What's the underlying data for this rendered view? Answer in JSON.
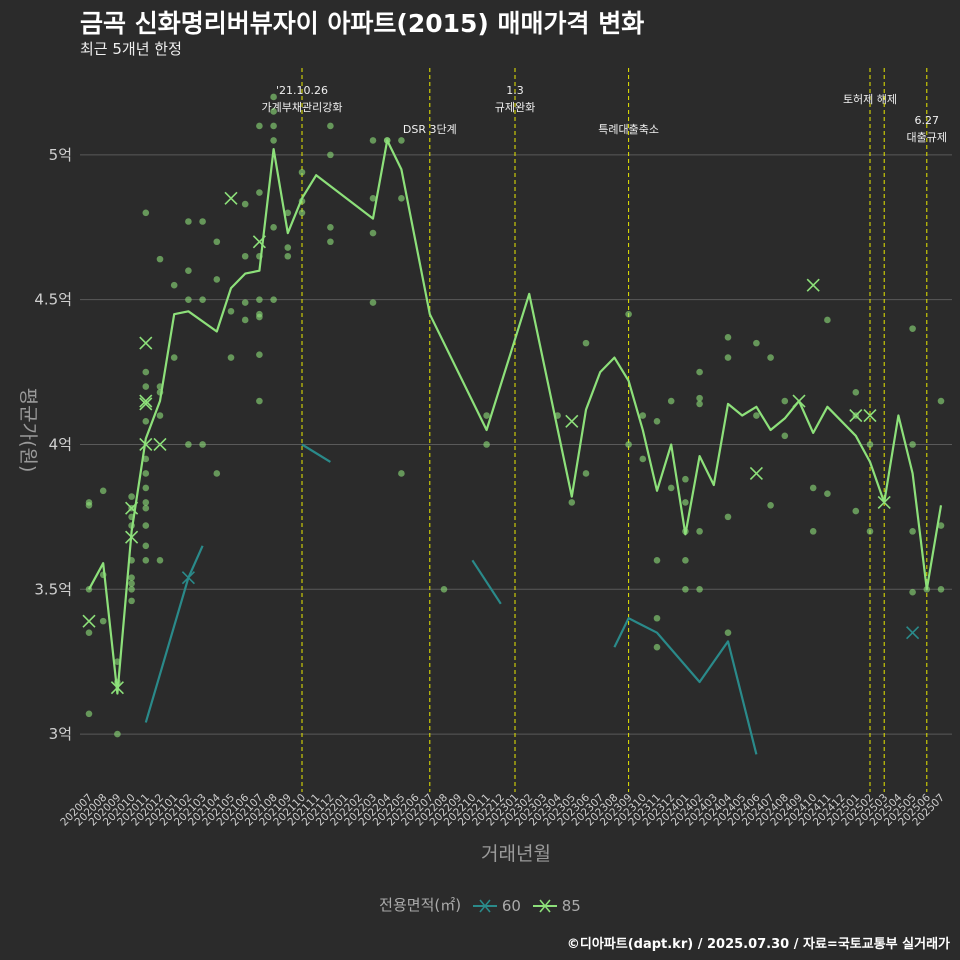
{
  "title": "금곡 신화명리버뷰자이 아파트(2015) 매매가격 변화",
  "subtitle": "최근 5개년 한정",
  "caption": "©디아파트(dapt.kr) / 2025.07.30 / 자료=국토교통부 실거래가",
  "colors": {
    "s60": "#2a8a8a",
    "s85": "#8de07a",
    "event": "#e8e800",
    "grid": "#5a5a5a",
    "bg": "#2b2b2b"
  },
  "chart_data": {
    "type": "line",
    "xlabel": "거래년월",
    "ylabel": "평균가(원)",
    "x": [
      "202007",
      "202008",
      "202009",
      "202010",
      "202011",
      "202012",
      "202101",
      "202102",
      "202103",
      "202104",
      "202105",
      "202106",
      "202107",
      "202108",
      "202109",
      "202110",
      "202111",
      "202112",
      "202201",
      "202202",
      "202203",
      "202204",
      "202205",
      "202206",
      "202207",
      "202208",
      "202209",
      "202210",
      "202211",
      "202212",
      "202301",
      "202302",
      "202303",
      "202304",
      "202305",
      "202306",
      "202307",
      "202308",
      "202309",
      "202310",
      "202311",
      "202312",
      "202401",
      "202402",
      "202403",
      "202404",
      "202405",
      "202406",
      "202407",
      "202408",
      "202409",
      "202410",
      "202411",
      "202412",
      "202501",
      "202502",
      "202503",
      "202504",
      "202505",
      "202506",
      "202507"
    ],
    "y_ticks": [
      3.0,
      3.5,
      4.0,
      4.5,
      5.0
    ],
    "y_tick_labels": [
      "3억",
      "3.5억",
      "4억",
      "4.5억",
      "5억"
    ],
    "ylim": [
      2.8,
      5.3
    ],
    "legend_title": "전용면적(㎡)",
    "series": [
      {
        "name": "60",
        "points": [
          [
            "202011",
            3.04
          ],
          [
            "202102",
            3.54
          ],
          [
            "202103",
            3.65
          ],
          [
            "202110",
            4.0
          ],
          [
            "202112",
            3.94
          ],
          [
            "202210",
            3.6
          ],
          [
            "202212",
            3.45
          ],
          [
            "202308",
            3.3
          ],
          [
            "202309",
            3.4
          ],
          [
            "202311",
            3.35
          ],
          [
            "202402",
            3.18
          ],
          [
            "202404",
            3.32
          ],
          [
            "202406",
            2.93
          ]
        ]
      },
      {
        "name": "85",
        "points": [
          [
            "202007",
            3.5
          ],
          [
            "202008",
            3.59
          ],
          [
            "202009",
            3.14
          ],
          [
            "202010",
            3.7
          ],
          [
            "202011",
            4.02
          ],
          [
            "202012",
            4.15
          ],
          [
            "202101",
            4.45
          ],
          [
            "202102",
            4.46
          ],
          [
            "202104",
            4.39
          ],
          [
            "202105",
            4.54
          ],
          [
            "202106",
            4.59
          ],
          [
            "202107",
            4.6
          ],
          [
            "202108",
            5.02
          ],
          [
            "202109",
            4.73
          ],
          [
            "202110",
            4.85
          ],
          [
            "202111",
            4.93
          ],
          [
            "202203",
            4.78
          ],
          [
            "202204",
            5.05
          ],
          [
            "202205",
            4.95
          ],
          [
            "202207",
            4.45
          ],
          [
            "202211",
            4.05
          ],
          [
            "202302",
            4.52
          ],
          [
            "202305",
            3.82
          ],
          [
            "202306",
            4.12
          ],
          [
            "202307",
            4.25
          ],
          [
            "202308",
            4.3
          ],
          [
            "202309",
            4.22
          ],
          [
            "202310",
            4.05
          ],
          [
            "202311",
            3.84
          ],
          [
            "202312",
            4.0
          ],
          [
            "202401",
            3.69
          ],
          [
            "202402",
            3.96
          ],
          [
            "202403",
            3.86
          ],
          [
            "202404",
            4.14
          ],
          [
            "202405",
            4.1
          ],
          [
            "202406",
            4.13
          ],
          [
            "202407",
            4.05
          ],
          [
            "202408",
            4.09
          ],
          [
            "202409",
            4.15
          ],
          [
            "202410",
            4.04
          ],
          [
            "202411",
            4.13
          ],
          [
            "202412",
            4.08
          ],
          [
            "202501",
            4.03
          ],
          [
            "202502",
            3.94
          ],
          [
            "202503",
            3.8
          ],
          [
            "202504",
            4.1
          ],
          [
            "202505",
            3.9
          ],
          [
            "202506",
            3.5
          ],
          [
            "202507",
            3.79
          ]
        ]
      }
    ],
    "scatter_points": [
      [
        "202007",
        3.8
      ],
      [
        "202007",
        3.79
      ],
      [
        "202007",
        3.35
      ],
      [
        "202007",
        3.07
      ],
      [
        "202007",
        3.5
      ],
      [
        "202008",
        3.84
      ],
      [
        "202008",
        3.39
      ],
      [
        "202008",
        3.55
      ],
      [
        "202009",
        3.25
      ],
      [
        "202009",
        3.0
      ],
      [
        "202009",
        3.18
      ],
      [
        "202010",
        3.82
      ],
      [
        "202010",
        3.78
      ],
      [
        "202010",
        3.75
      ],
      [
        "202010",
        3.72
      ],
      [
        "202010",
        3.6
      ],
      [
        "202010",
        3.54
      ],
      [
        "202010",
        3.5
      ],
      [
        "202010",
        3.46
      ],
      [
        "202010",
        3.52
      ],
      [
        "202011",
        4.8
      ],
      [
        "202011",
        4.25
      ],
      [
        "202011",
        4.2
      ],
      [
        "202011",
        4.08
      ],
      [
        "202011",
        3.95
      ],
      [
        "202011",
        3.9
      ],
      [
        "202011",
        3.85
      ],
      [
        "202011",
        3.8
      ],
      [
        "202011",
        3.78
      ],
      [
        "202011",
        3.72
      ],
      [
        "202011",
        3.65
      ],
      [
        "202011",
        3.6
      ],
      [
        "202012",
        4.64
      ],
      [
        "202012",
        4.2
      ],
      [
        "202012",
        4.18
      ],
      [
        "202012",
        4.1
      ],
      [
        "202012",
        3.6
      ],
      [
        "202101",
        4.55
      ],
      [
        "202101",
        4.3
      ],
      [
        "202102",
        4.77
      ],
      [
        "202102",
        4.6
      ],
      [
        "202102",
        4.5
      ],
      [
        "202102",
        4.0
      ],
      [
        "202103",
        4.77
      ],
      [
        "202103",
        4.5
      ],
      [
        "202103",
        4.0
      ],
      [
        "202104",
        4.7
      ],
      [
        "202104",
        4.57
      ],
      [
        "202104",
        3.9
      ],
      [
        "202105",
        4.46
      ],
      [
        "202105",
        4.3
      ],
      [
        "202106",
        4.83
      ],
      [
        "202106",
        4.65
      ],
      [
        "202106",
        4.49
      ],
      [
        "202106",
        4.43
      ],
      [
        "202107",
        5.1
      ],
      [
        "202107",
        4.87
      ],
      [
        "202107",
        4.65
      ],
      [
        "202107",
        4.5
      ],
      [
        "202107",
        4.45
      ],
      [
        "202107",
        4.44
      ],
      [
        "202107",
        4.31
      ],
      [
        "202107",
        4.15
      ],
      [
        "202108",
        5.2
      ],
      [
        "202108",
        5.15
      ],
      [
        "202108",
        5.1
      ],
      [
        "202108",
        5.05
      ],
      [
        "202108",
        4.75
      ],
      [
        "202108",
        4.5
      ],
      [
        "202109",
        4.8
      ],
      [
        "202109",
        4.68
      ],
      [
        "202109",
        4.65
      ],
      [
        "202110",
        4.94
      ],
      [
        "202110",
        4.84
      ],
      [
        "202110",
        4.8
      ],
      [
        "202112",
        5.1
      ],
      [
        "202112",
        5.0
      ],
      [
        "202112",
        4.75
      ],
      [
        "202112",
        4.7
      ],
      [
        "202203",
        5.05
      ],
      [
        "202203",
        4.85
      ],
      [
        "202203",
        4.73
      ],
      [
        "202203",
        4.49
      ],
      [
        "202204",
        5.05
      ],
      [
        "202204",
        5.05
      ],
      [
        "202205",
        5.05
      ],
      [
        "202205",
        4.85
      ],
      [
        "202205",
        3.9
      ],
      [
        "202208",
        3.5
      ],
      [
        "202211",
        4.1
      ],
      [
        "202211",
        4.0
      ],
      [
        "202304",
        4.1
      ],
      [
        "202305",
        3.8
      ],
      [
        "202306",
        4.35
      ],
      [
        "202306",
        3.9
      ],
      [
        "202309",
        4.45
      ],
      [
        "202309",
        4.0
      ],
      [
        "202310",
        4.1
      ],
      [
        "202310",
        3.95
      ],
      [
        "202311",
        4.08
      ],
      [
        "202311",
        3.6
      ],
      [
        "202311",
        3.4
      ],
      [
        "202311",
        3.3
      ],
      [
        "202312",
        4.15
      ],
      [
        "202312",
        3.85
      ],
      [
        "202401",
        3.88
      ],
      [
        "202401",
        3.8
      ],
      [
        "202401",
        3.6
      ],
      [
        "202401",
        3.5
      ],
      [
        "202401",
        3.7
      ],
      [
        "202402",
        4.25
      ],
      [
        "202402",
        4.16
      ],
      [
        "202402",
        4.14
      ],
      [
        "202402",
        3.7
      ],
      [
        "202402",
        3.5
      ],
      [
        "202404",
        4.37
      ],
      [
        "202404",
        4.3
      ],
      [
        "202404",
        3.75
      ],
      [
        "202404",
        3.35
      ],
      [
        "202406",
        4.35
      ],
      [
        "202406",
        4.1
      ],
      [
        "202407",
        4.3
      ],
      [
        "202407",
        3.79
      ],
      [
        "202408",
        4.15
      ],
      [
        "202408",
        4.03
      ],
      [
        "202410",
        3.85
      ],
      [
        "202410",
        3.7
      ],
      [
        "202411",
        4.43
      ],
      [
        "202411",
        3.83
      ],
      [
        "202501",
        4.18
      ],
      [
        "202501",
        4.1
      ],
      [
        "202501",
        3.77
      ],
      [
        "202502",
        4.0
      ],
      [
        "202502",
        3.7
      ],
      [
        "202505",
        4.4
      ],
      [
        "202505",
        4.0
      ],
      [
        "202505",
        3.7
      ],
      [
        "202505",
        3.49
      ],
      [
        "202506",
        3.5
      ],
      [
        "202507",
        4.15
      ],
      [
        "202507",
        3.72
      ],
      [
        "202507",
        3.5
      ]
    ],
    "cross_markers": [
      {
        "series": "60",
        "points": [
          [
            "202102",
            3.54
          ],
          [
            "202505",
            3.35
          ]
        ]
      },
      {
        "series": "85",
        "points": [
          [
            "202007",
            3.39
          ],
          [
            "202009",
            3.16
          ],
          [
            "202010",
            3.78
          ],
          [
            "202010",
            3.68
          ],
          [
            "202011",
            4.35
          ],
          [
            "202011",
            4.15
          ],
          [
            "202011",
            4.14
          ],
          [
            "202011",
            4.0
          ],
          [
            "202012",
            4.0
          ],
          [
            "202105",
            4.85
          ],
          [
            "202107",
            4.7
          ],
          [
            "202305",
            4.08
          ],
          [
            "202406",
            3.9
          ],
          [
            "202409",
            4.15
          ],
          [
            "202410",
            4.55
          ],
          [
            "202501",
            4.1
          ],
          [
            "202502",
            4.1
          ],
          [
            "202503",
            3.8
          ]
        ]
      }
    ],
    "events": [
      {
        "x": "202110",
        "label": "'21.10.26\n가계부채관리강화"
      },
      {
        "x": "202207",
        "label": "DSR 3단계"
      },
      {
        "x": "202301",
        "label": "1.3\n규제완화"
      },
      {
        "x": "202309",
        "label": "특례대출축소"
      },
      {
        "x": "202502",
        "label": "토허제 해제"
      },
      {
        "x": "202503",
        "label": ""
      },
      {
        "x": "202506",
        "label": "6.27\n대출규제"
      }
    ]
  }
}
